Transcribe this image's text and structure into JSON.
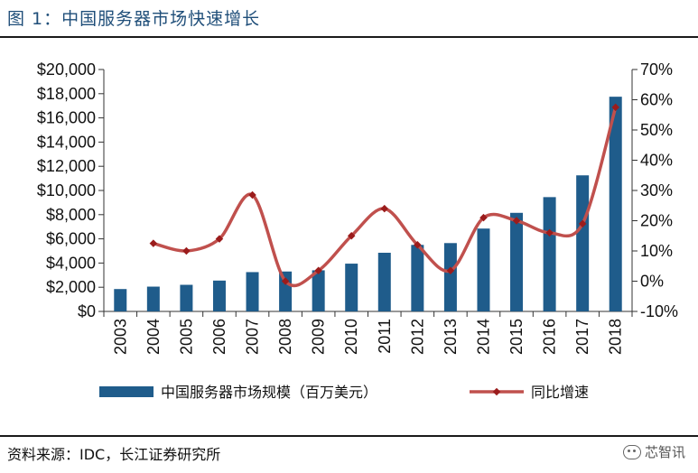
{
  "figure": {
    "title": "图  1：中国服务器市场快速增长",
    "source": "资料来源：IDC，长江证券研究所",
    "watermark": "芯智讯"
  },
  "chart_data": {
    "type": "bar",
    "categories": [
      "2003",
      "2004",
      "2005",
      "2006",
      "2007",
      "2008",
      "2009",
      "2010",
      "2011",
      "2012",
      "2013",
      "2014",
      "2015",
      "2016",
      "2017",
      "2018"
    ],
    "series": [
      {
        "name": "中国服务器市场规模（百万美元）",
        "type": "bar",
        "axis": "left",
        "color": "#1f5c8b",
        "values": [
          1850,
          2050,
          2200,
          2550,
          3250,
          3300,
          3400,
          3950,
          4850,
          5500,
          5650,
          6850,
          8150,
          9450,
          11250,
          17750
        ]
      },
      {
        "name": "同比增速",
        "type": "line",
        "axis": "right",
        "color": "#c0504d",
        "values": [
          null,
          12.5,
          10,
          14,
          28.5,
          0,
          3.5,
          15,
          24,
          12,
          3.5,
          21,
          20,
          16,
          19,
          57.5
        ]
      }
    ],
    "y_left": {
      "min": 0,
      "max": 20000,
      "step": 2000,
      "tick_labels": [
        "$0",
        "$2,000",
        "$4,000",
        "$6,000",
        "$8,000",
        "$10,000",
        "$12,000",
        "$14,000",
        "$16,000",
        "$18,000",
        "$20,000"
      ]
    },
    "y_right": {
      "min": -10,
      "max": 70,
      "step": 10,
      "tick_labels": [
        "-10%",
        "0%",
        "10%",
        "20%",
        "30%",
        "40%",
        "50%",
        "60%",
        "70%"
      ]
    },
    "x_tick_rotation": "vertical",
    "grid": false,
    "legend_position": "bottom"
  }
}
